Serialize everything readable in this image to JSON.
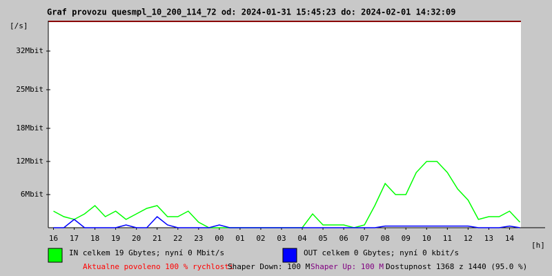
{
  "chart_data": {
    "type": "line",
    "title": "Graf provozu quesmpl_10_200_114_72 od: 2024-01-31 15:45:23 do: 2024-02-01 14:32:09",
    "y_label": "[/s]",
    "x_label": "[h]",
    "x": [
      16,
      16.5,
      17,
      17.5,
      18,
      18.5,
      19,
      19.5,
      20,
      20.5,
      21,
      21.5,
      22,
      22.5,
      23,
      23.5,
      24,
      24.5,
      25,
      25.5,
      26,
      26.5,
      27,
      27.5,
      28,
      28.5,
      29,
      29.5,
      30,
      30.5,
      31,
      31.5,
      32,
      32.5,
      33,
      33.5,
      34,
      34.5,
      35,
      35.5,
      36,
      36.5,
      37,
      37.5,
      38,
      38.5
    ],
    "series": [
      {
        "name": "IN celkem 19 Gbytes; nyní 0 Mbit/s",
        "color": "#00ff00",
        "values": [
          3,
          2,
          1.5,
          2.5,
          4,
          2,
          3,
          1.5,
          2.5,
          3.5,
          4,
          2,
          2,
          3,
          1,
          0,
          0,
          0,
          0,
          0,
          0,
          0,
          0,
          0,
          0,
          2.5,
          0.5,
          0.5,
          0.5,
          0,
          0.5,
          4,
          8,
          6,
          6,
          10,
          12,
          12,
          10,
          7,
          5,
          1.5,
          2,
          2,
          3,
          1
        ]
      },
      {
        "name": "OUT celkem 0 Gbytes; nyní 0 kbit/s",
        "color": "#0000ff",
        "values": [
          0,
          0,
          1.5,
          0,
          0,
          0,
          0,
          0.5,
          0,
          0,
          2,
          0.5,
          0,
          0,
          0,
          0,
          0.5,
          0,
          0,
          0,
          0,
          0,
          0,
          0,
          0,
          0,
          0,
          0,
          0,
          0,
          0,
          0,
          0.3,
          0.3,
          0.3,
          0.3,
          0.3,
          0.3,
          0.3,
          0.3,
          0.3,
          0,
          0,
          0,
          0.3,
          0
        ]
      }
    ],
    "xlim": [
      15.75,
      38.55
    ],
    "xticks": [
      16,
      17,
      18,
      19,
      20,
      21,
      22,
      23,
      {
        "value": 24,
        "label": "00"
      },
      {
        "value": 25,
        "label": "01"
      },
      {
        "value": 26,
        "label": "02"
      },
      {
        "value": 27,
        "label": "03"
      },
      {
        "value": 28,
        "label": "04"
      },
      {
        "value": 29,
        "label": "05"
      },
      {
        "value": 30,
        "label": "06"
      },
      {
        "value": 31,
        "label": "07"
      },
      {
        "value": 32,
        "label": "08"
      },
      {
        "value": 33,
        "label": "09"
      },
      {
        "value": 34,
        "label": "10"
      },
      {
        "value": 35,
        "label": "11"
      },
      {
        "value": 36,
        "label": "12"
      },
      {
        "value": 37,
        "label": "13"
      },
      {
        "value": 38,
        "label": "14"
      }
    ],
    "ylim": [
      0,
      37.5
    ],
    "yticks": [
      {
        "value": 6,
        "label": "6Mbit"
      },
      {
        "value": 12,
        "label": "12Mbit"
      },
      {
        "value": 18,
        "label": "18Mbit"
      },
      {
        "value": 25,
        "label": "25Mbit"
      },
      {
        "value": 32,
        "label": "32Mbit"
      }
    ],
    "notes": [
      "Aktualne povoleno 100 % rychlosti",
      "Shaper Down: 100 M",
      "Shaper Up: 100 M",
      "Dostupnost 1368 z 1440 (95.0 %)"
    ]
  }
}
